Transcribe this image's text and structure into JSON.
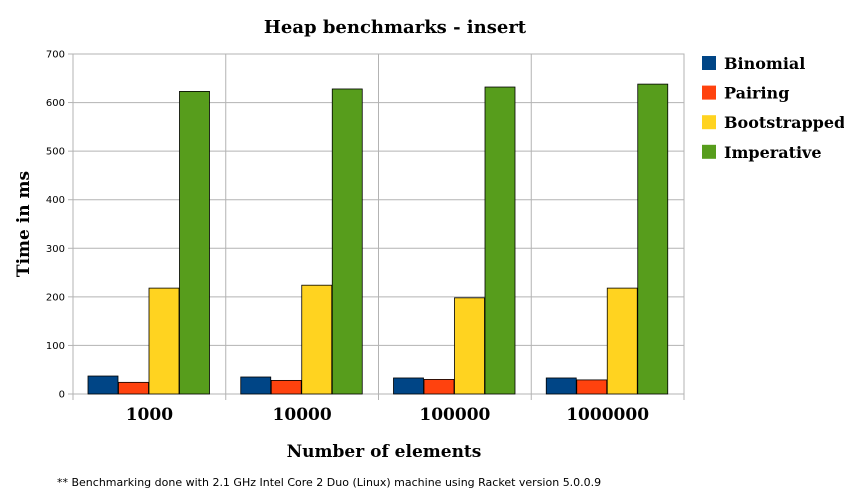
{
  "chart_data": {
    "type": "bar",
    "title": "Heap benchmarks - insert",
    "xlabel": "Number of elements",
    "ylabel": "Time in ms",
    "categories": [
      "1000",
      "10000",
      "100000",
      "1000000"
    ],
    "series": [
      {
        "name": "Binomial",
        "color": "#004586",
        "values": [
          37,
          35,
          33,
          33
        ]
      },
      {
        "name": "Pairing",
        "color": "#ff420e",
        "values": [
          24,
          28,
          30,
          29
        ]
      },
      {
        "name": "Bootstrapped",
        "color": "#ffd320",
        "values": [
          218,
          224,
          198,
          218
        ]
      },
      {
        "name": "Imperative",
        "color": "#579d1c",
        "values": [
          623,
          628,
          632,
          638
        ]
      }
    ],
    "ylim": [
      0,
      700
    ],
    "yticks": [
      0,
      100,
      200,
      300,
      400,
      500,
      600,
      700
    ],
    "grid": true,
    "legend_position": "right"
  },
  "footnote": "** Benchmarking done with 2.1 GHz Intel Core 2 Duo (Linux) machine using Racket version 5.0.0.9"
}
